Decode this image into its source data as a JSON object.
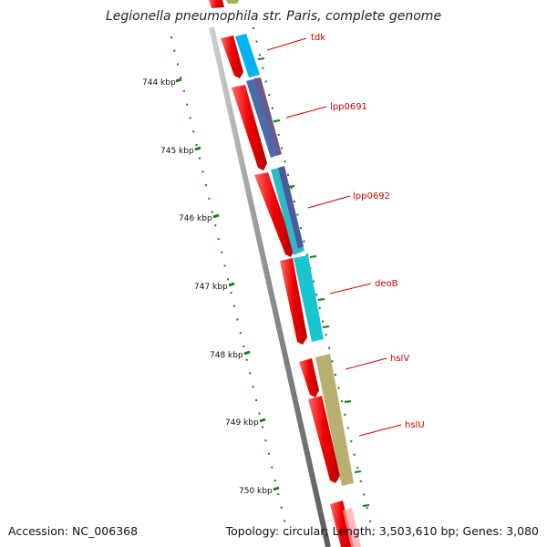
{
  "title": "Legionella pneumophila str. Paris, complete genome",
  "footer": {
    "accession": "Accession: NC_006368",
    "info": "Topology: circular; Length: 3,503,610 bp; Genes: 3,080"
  },
  "ticks": [
    "744 kbp",
    "745 kbp",
    "746 kbp",
    "747 kbp",
    "748 kbp",
    "749 kbp",
    "750 kbp"
  ],
  "gene_labels": [
    "tdk",
    "lpp0691",
    "lpp0692",
    "deoB",
    "hslV",
    "hslU"
  ],
  "colors": {
    "cds": "#ee0000",
    "backbone": "#888888",
    "tick_marks": "#1a7a1a",
    "label_text": "#d00000",
    "tdk": "#00b2f0",
    "lpp0691": "#5a5a9a",
    "lpp0692_cog": "#2fb8c8",
    "deoB": "#19c6cf",
    "hsl": "#b8b070",
    "top_feature": "#8aa840"
  }
}
